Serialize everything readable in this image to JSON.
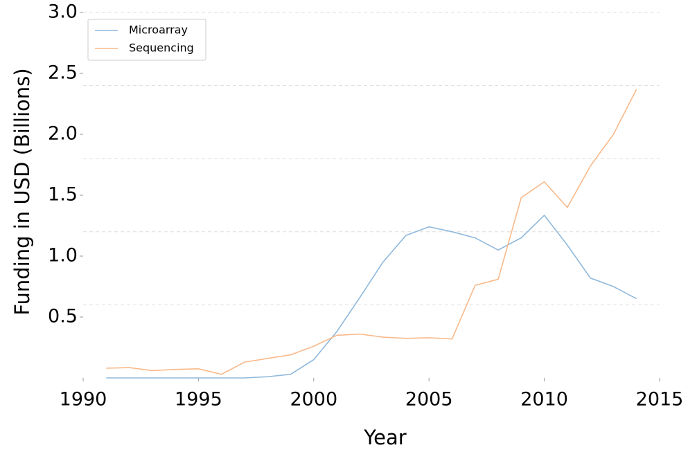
{
  "chart_data": {
    "type": "line",
    "xlabel": "Year",
    "ylabel": "Funding in USD (Billions)",
    "x": [
      1991,
      1992,
      1993,
      1994,
      1995,
      1996,
      1997,
      1998,
      1999,
      2000,
      2001,
      2002,
      2003,
      2004,
      2005,
      2006,
      2007,
      2008,
      2009,
      2010,
      2011,
      2012,
      2013,
      2014
    ],
    "series": [
      {
        "name": "Microarray",
        "color": "#8fb8dc",
        "values": [
          0,
          0,
          0,
          0,
          0,
          0,
          0,
          0.01,
          0.03,
          0.15,
          0.38,
          0.66,
          0.95,
          1.17,
          1.24,
          1.2,
          1.15,
          1.05,
          1.15,
          1.335,
          1.09,
          0.82,
          0.75,
          0.65
        ]
      },
      {
        "name": "Sequencing",
        "color": "#f8b98a",
        "values": [
          0.08,
          0.085,
          0.06,
          0.07,
          0.075,
          0.03,
          0.13,
          0.16,
          0.19,
          0.26,
          0.35,
          0.36,
          0.335,
          0.325,
          0.33,
          0.32,
          0.76,
          0.81,
          1.48,
          1.61,
          1.4,
          1.74,
          2.0,
          2.37
        ]
      }
    ],
    "xlim": [
      1990,
      2015
    ],
    "xticks": [
      1990,
      1995,
      2000,
      2005,
      2010,
      2015
    ],
    "ylim": [
      0,
      3
    ],
    "yticks": [
      0.5,
      {
        "value": 1,
        "label": "1.0"
      },
      1.5,
      {
        "value": 2,
        "label": "2.0"
      },
      2.5,
      {
        "value": 3,
        "label": "3.0"
      }
    ],
    "ygrid": [
      0.6,
      1.2,
      1.8,
      2.4,
      3
    ],
    "legend": "upper left"
  }
}
